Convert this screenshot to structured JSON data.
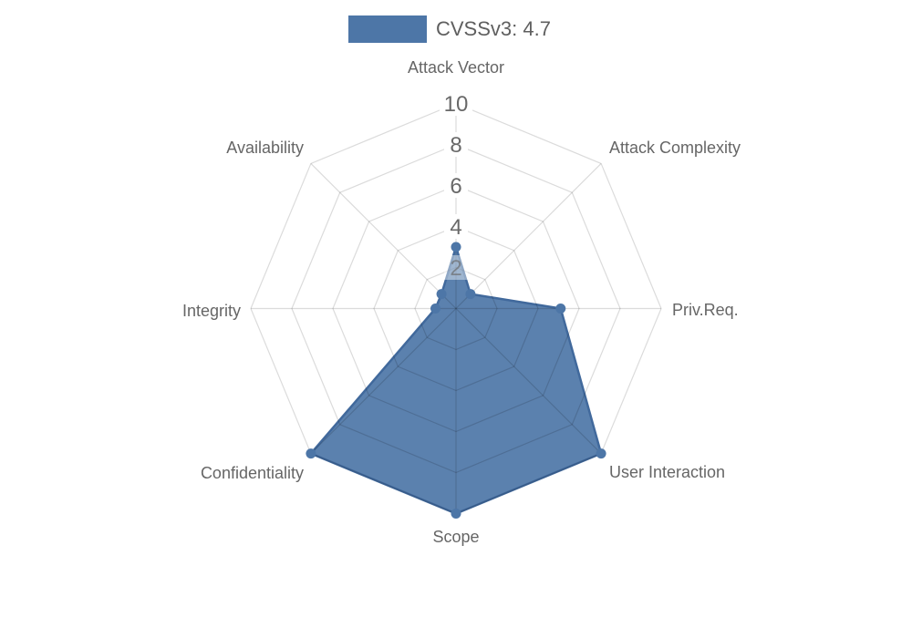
{
  "page": {
    "background": "#ffffff"
  },
  "chart_data": {
    "type": "radar",
    "title": "",
    "legend": {
      "label": "CVSSv3: 4.7",
      "position": "top"
    },
    "axes": [
      "Attack Vector",
      "Attack Complexity",
      "Priv.Req.",
      "User Interaction",
      "Scope",
      "Confidentiality",
      "Integrity",
      "Availability"
    ],
    "series": [
      {
        "name": "CVSSv3: 4.7",
        "values": [
          3,
          1,
          5.1,
          10,
          10,
          10,
          1,
          1
        ]
      }
    ],
    "scale": {
      "min": 0,
      "max": 10,
      "tick_step": 2,
      "visible_tick_labels": [
        "10",
        "8",
        "6",
        "4",
        "2"
      ]
    },
    "grid": "spider-web",
    "legend_position": "top",
    "colors": {
      "series": "#4d76a7",
      "series_stroke": "#41699c",
      "grid_line": "rgba(0,0,0,0.14)",
      "axis_label": "#666666",
      "tick_label": "#696969",
      "tick_backdrop": "#ffffff",
      "legend_text": "#5f5f5f"
    }
  }
}
